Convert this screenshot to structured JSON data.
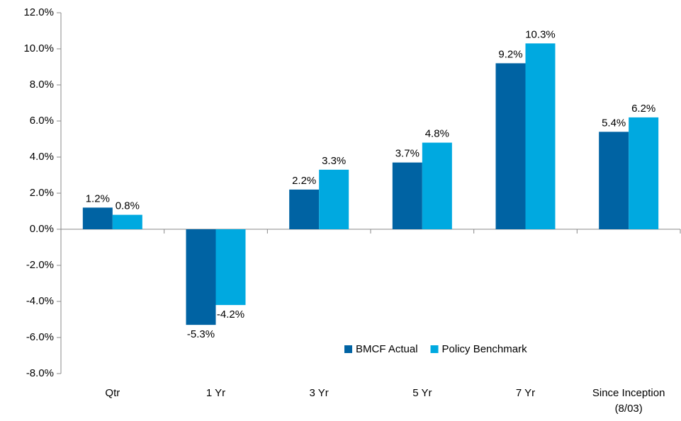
{
  "chart_data": {
    "type": "bar",
    "categories": [
      "Qtr",
      "1 Yr",
      "3 Yr",
      "5 Yr",
      "7 Yr",
      "Since Inception (8/03)"
    ],
    "series": [
      {
        "name": "BMCF Actual",
        "color": "#0063a3",
        "values": [
          1.2,
          -5.3,
          2.2,
          3.7,
          9.2,
          5.4
        ],
        "value_labels": [
          "1.2%",
          "-5.3%",
          "2.2%",
          "3.7%",
          "9.2%",
          "5.4%"
        ]
      },
      {
        "name": "Policy Benchmark",
        "color": "#00a9e0",
        "values": [
          0.8,
          -4.2,
          3.3,
          4.8,
          10.3,
          6.2
        ],
        "value_labels": [
          "0.8%",
          "-4.2%",
          "3.3%",
          "4.8%",
          "10.3%",
          "6.2%"
        ]
      }
    ],
    "ylim": [
      -8,
      12
    ],
    "yticks": [
      {
        "value": -8,
        "label": "-8.0%"
      },
      {
        "value": -6,
        "label": "-6.0%"
      },
      {
        "value": -4,
        "label": "-4.0%"
      },
      {
        "value": -2,
        "label": "-2.0%"
      },
      {
        "value": 0,
        "label": "0.0%"
      },
      {
        "value": 2,
        "label": "2.0%"
      },
      {
        "value": 4,
        "label": "4.0%"
      },
      {
        "value": 6,
        "label": "6.0%"
      },
      {
        "value": 8,
        "label": "8.0%"
      },
      {
        "value": 10,
        "label": "10.0%"
      },
      {
        "value": 12,
        "label": "12.0%"
      }
    ],
    "legend": "lower-right"
  }
}
